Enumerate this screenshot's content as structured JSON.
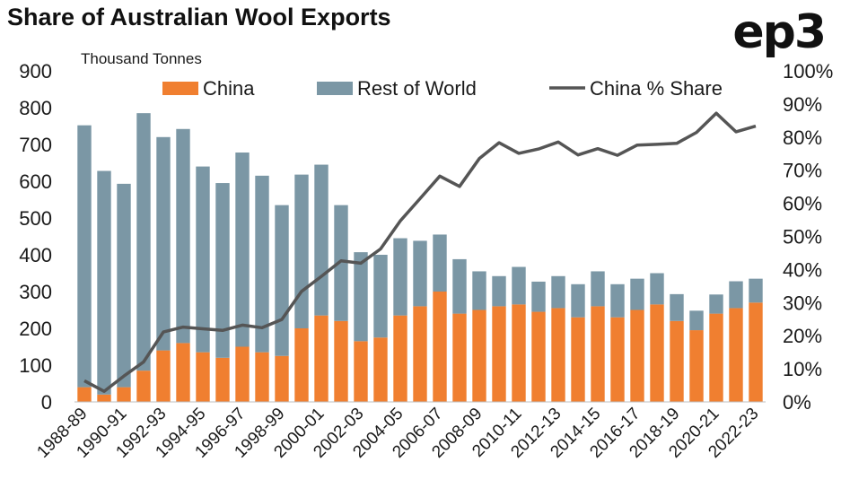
{
  "header": {
    "title": "Share of Australian Wool Exports",
    "logo": "ep3"
  },
  "chart_data": {
    "type": "bar",
    "stacked": true,
    "title": "Share of Australian Wool Exports",
    "unit_label": "Thousand Tonnes",
    "ylim_left": [
      0,
      900
    ],
    "ylim_right": [
      0,
      100
    ],
    "y_ticks_left": [
      "0",
      "100",
      "200",
      "300",
      "400",
      "500",
      "600",
      "700",
      "800",
      "900"
    ],
    "y_ticks_right": [
      "0%",
      "10%",
      "20%",
      "30%",
      "40%",
      "50%",
      "60%",
      "70%",
      "80%",
      "90%",
      "100%"
    ],
    "categories": [
      "1988-89",
      "1989-90",
      "1990-91",
      "1991-92",
      "1992-93",
      "1993-94",
      "1994-95",
      "1995-96",
      "1996-97",
      "1997-98",
      "1998-99",
      "1999-00",
      "2000-01",
      "2001-02",
      "2002-03",
      "2003-04",
      "2004-05",
      "2005-06",
      "2006-07",
      "2007-08",
      "2008-09",
      "2009-10",
      "2010-11",
      "2011-12",
      "2012-13",
      "2013-14",
      "2014-15",
      "2015-16",
      "2016-17",
      "2017-18",
      "2018-19",
      "2019-20",
      "2020-21",
      "2021-22",
      "2022-23"
    ],
    "x_tick_labels": [
      "1988-89",
      "",
      "1990-91",
      "",
      "1992-93",
      "",
      "1994-95",
      "",
      "1996-97",
      "",
      "1998-99",
      "",
      "2000-01",
      "",
      "2002-03",
      "",
      "2004-05",
      "",
      "2006-07",
      "",
      "2008-09",
      "",
      "2010-11",
      "",
      "2012-13",
      "",
      "2014-15",
      "",
      "2016-17",
      "",
      "2018-19",
      "",
      "2020-21",
      "",
      "2022-23"
    ],
    "series": [
      {
        "name": "China",
        "type": "bar",
        "axis": "left",
        "color": "#f07f30",
        "values": [
          40,
          20,
          40,
          85,
          140,
          160,
          135,
          120,
          150,
          135,
          125,
          200,
          235,
          220,
          165,
          175,
          235,
          260,
          300,
          240,
          250,
          260,
          265,
          245,
          255,
          230,
          260,
          230,
          250,
          265,
          220,
          195,
          240,
          255,
          270
        ]
      },
      {
        "name": "Rest of World",
        "type": "bar",
        "axis": "left",
        "color": "#7b97a5",
        "values": [
          712,
          608,
          553,
          700,
          580,
          582,
          505,
          475,
          528,
          480,
          410,
          418,
          410,
          315,
          242,
          225,
          210,
          178,
          155,
          148,
          105,
          82,
          102,
          82,
          87,
          90,
          95,
          90,
          85,
          85,
          73,
          53,
          52,
          73,
          65
        ]
      },
      {
        "name": "China % Share",
        "type": "line",
        "axis": "right",
        "color": "#555555",
        "values": [
          6.4,
          3.2,
          7.8,
          12.1,
          21.1,
          22.6,
          22.1,
          21.6,
          23.2,
          22.4,
          24.9,
          33.4,
          37.9,
          42.6,
          41.9,
          46.2,
          54.7,
          61.4,
          68.2,
          65.1,
          73.5,
          78.3,
          75.1,
          76.4,
          78.5,
          74.6,
          76.5,
          74.5,
          77.6,
          77.8,
          78.1,
          81.4,
          87.2,
          81.6,
          83.3
        ]
      }
    ],
    "legend_position": "top",
    "grid": false
  }
}
